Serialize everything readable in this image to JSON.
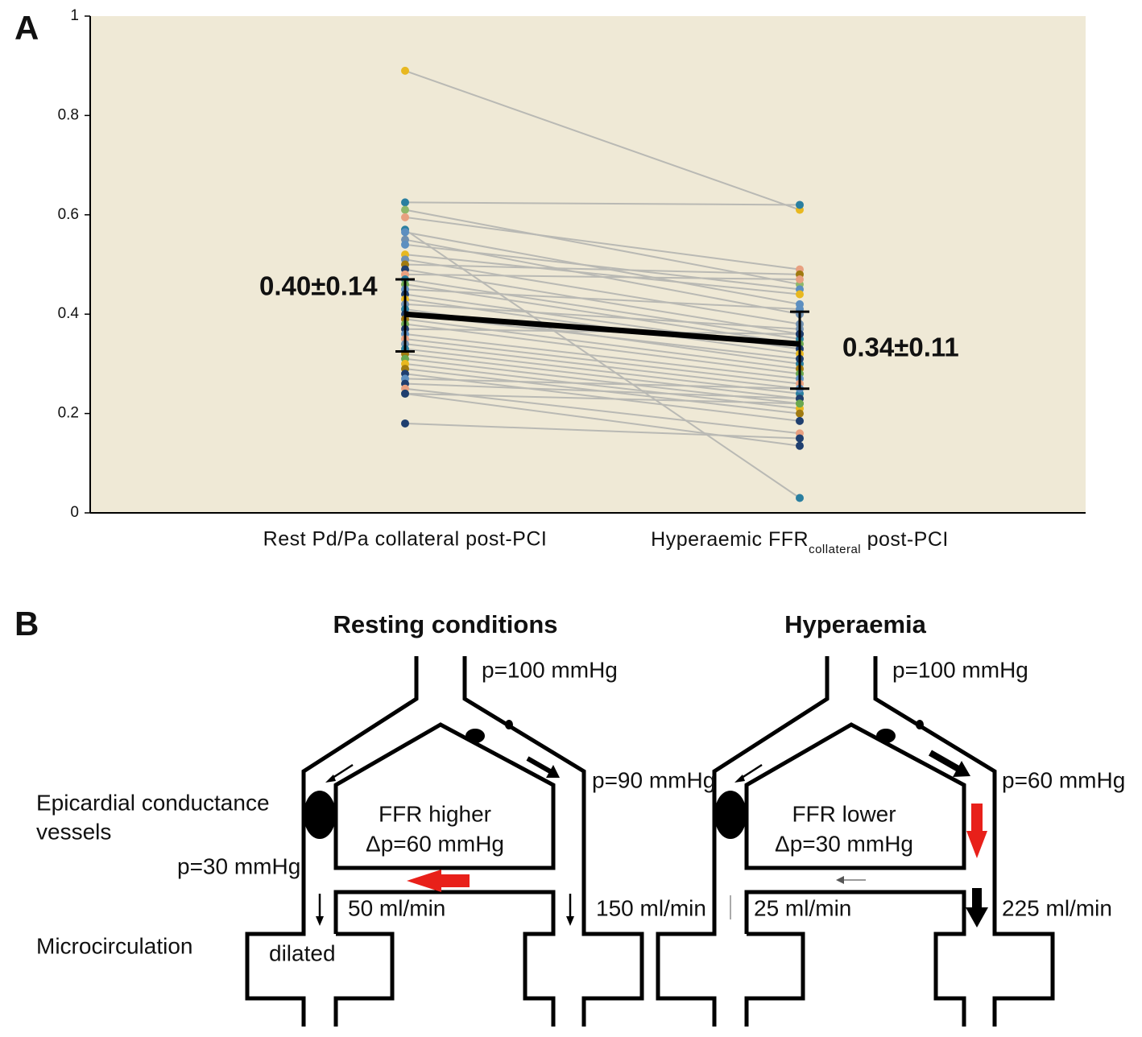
{
  "chart_data": {
    "type": "paired",
    "panel_label": "A",
    "categories": [
      {
        "text": "Rest Pd/Pa collateral post-PCI"
      },
      {
        "text": "Hyperaemic FFR",
        "sub": "collateral",
        "tail": " post-PCI"
      }
    ],
    "ylim": [
      0,
      1
    ],
    "yticks": [
      0,
      0.2,
      0.4,
      0.6,
      0.8,
      1
    ],
    "background": "#efe9d6",
    "line_color": "#b9b9b4",
    "pairs": {
      "rest": [
        0.89,
        0.625,
        0.61,
        0.595,
        0.57,
        0.565,
        0.55,
        0.54,
        0.52,
        0.51,
        0.5,
        0.49,
        0.48,
        0.47,
        0.46,
        0.45,
        0.44,
        0.43,
        0.42,
        0.41,
        0.4,
        0.39,
        0.38,
        0.37,
        0.36,
        0.35,
        0.34,
        0.33,
        0.32,
        0.31,
        0.3,
        0.29,
        0.28,
        0.27,
        0.26,
        0.25,
        0.24,
        0.24,
        0.18
      ],
      "hyperaemic": [
        0.61,
        0.62,
        0.46,
        0.49,
        0.03,
        0.42,
        0.4,
        0.45,
        0.44,
        0.38,
        0.48,
        0.36,
        0.47,
        0.35,
        0.34,
        0.41,
        0.33,
        0.32,
        0.37,
        0.3,
        0.31,
        0.29,
        0.28,
        0.36,
        0.27,
        0.26,
        0.25,
        0.24,
        0.23,
        0.22,
        0.21,
        0.2,
        0.185,
        0.25,
        0.23,
        0.16,
        0.22,
        0.135,
        0.15
      ],
      "colors": [
        "#e8b820",
        "#2a7fa0",
        "#8fb86a",
        "#e8a080",
        "#2a7fa0",
        "#5d8fc0",
        "#7090b0",
        "#5d8fc0",
        "#e8b820",
        "#7090b0",
        "#a07a10",
        "#1f3f6f",
        "#e8a080",
        "#2a7fa0",
        "#6aa84f",
        "#5d8fc0",
        "#1f3f6f",
        "#e8b820",
        "#7090b0",
        "#2a7fa0",
        "#1f3f6f",
        "#a07a10",
        "#6aa84f",
        "#1f3f6f",
        "#5d8fc0",
        "#e8a080",
        "#7090b0",
        "#2a7fa0",
        "#a07a10",
        "#6aa84f",
        "#e8b820",
        "#a07a10",
        "#1f3f6f",
        "#5d8fc0",
        "#1f3f6f",
        "#e8a080",
        "#6aa84f",
        "#1f3f6f",
        "#1f3f6f"
      ]
    },
    "mean": {
      "values": [
        0.4,
        0.34
      ],
      "error_low": [
        0.325,
        0.25
      ],
      "error_high": [
        0.47,
        0.405
      ],
      "color": "#000000",
      "labels": [
        "0.40±0.14",
        "0.34±0.11"
      ]
    }
  },
  "diagram": {
    "panel_label": "B",
    "row_labels": {
      "epicardial": [
        "Epicardial conductance",
        "vessels"
      ],
      "microcirculation": "Microcirculation"
    },
    "panels": [
      {
        "title": "Resting conditions",
        "inlet_pressure": "p=100 mmHg",
        "outlet_pressure": "p=90 mmHg",
        "collateral_pressure": "p=30 mmHg",
        "ffr": "FFR higher",
        "delta": "Δp=60 mmHg",
        "flow_left": "50 ml/min",
        "flow_right": "150 ml/min",
        "note": "dilated"
      },
      {
        "title": "Hyperaemia",
        "inlet_pressure": "p=100 mmHg",
        "outlet_pressure": "p=60 mmHg",
        "ffr": "FFR lower",
        "delta": "Δp=30 mmHg",
        "flow_left": "25 ml/min",
        "flow_right": "225 ml/min"
      }
    ]
  }
}
